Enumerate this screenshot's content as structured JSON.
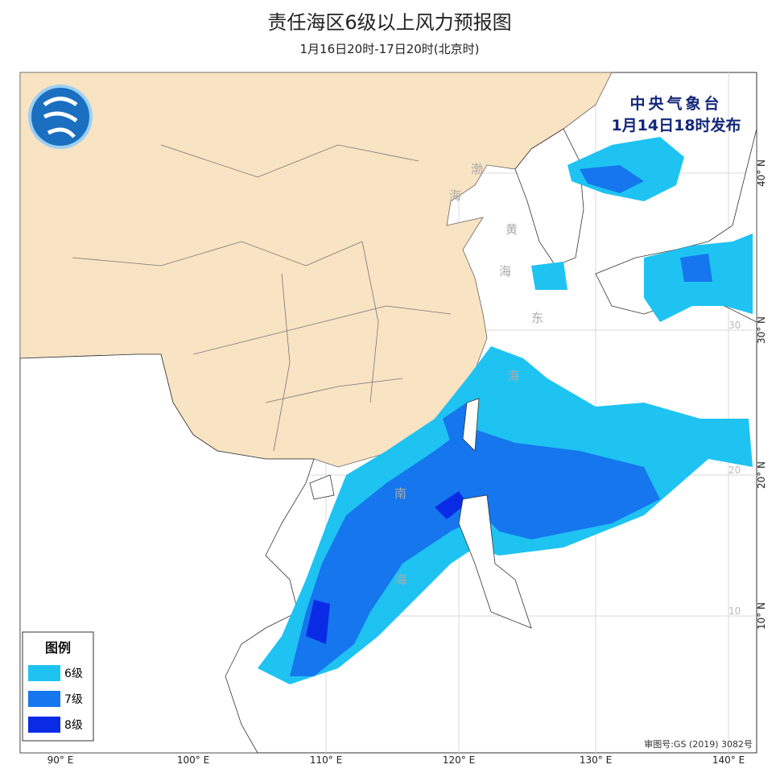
{
  "header": {
    "title": "责任海区6级以上风力预报图",
    "subtitle": "1月16日20时-17日20时(北京时)"
  },
  "issuer": {
    "name": "中央气象台",
    "issued": "1月14日18时发布"
  },
  "legend": {
    "title": "图例",
    "items": [
      {
        "label": "6级",
        "color": "#1ec3f2"
      },
      {
        "label": "7级",
        "color": "#1576ee"
      },
      {
        "label": "8级",
        "color": "#0a2be6"
      }
    ]
  },
  "longitude_labels": [
    "90° E",
    "100° E",
    "110° E",
    "120° E",
    "130° E",
    "140° E"
  ],
  "latitude_labels": [
    "40° N",
    "30° N",
    "20° N",
    "10° N"
  ],
  "inner_latitude_labels": [
    "30",
    "20",
    "10"
  ],
  "sea_labels": [
    "渤",
    "海",
    "黄",
    "海",
    "东",
    "海",
    "南",
    "海"
  ],
  "approval": "审图号:GS (2019) 3082号"
}
